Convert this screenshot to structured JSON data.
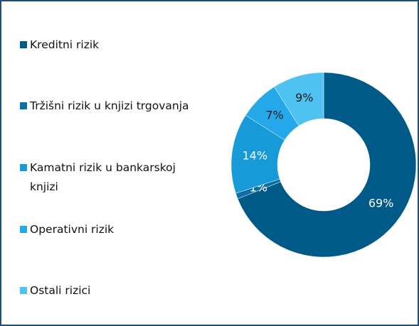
{
  "chart_data": {
    "type": "donut",
    "categories": [
      "Kreditni rizik",
      "Tržišni rizik u knjizi trgovanja",
      "Kamatni rizik u bankarskoj knjizi",
      "Operativni rizik",
      "Ostali rizici"
    ],
    "values": [
      69,
      1,
      14,
      7,
      9
    ],
    "value_labels": [
      "69%",
      "1%",
      "14%",
      "7%",
      "9%"
    ],
    "colors": [
      "#005a87",
      "#0b6fa6",
      "#169ad8",
      "#24a8ea",
      "#4fc2f2"
    ],
    "label_colors": [
      "#ffffff",
      "#ffffff",
      "#ffffff",
      "#1a1a1a",
      "#1a1a1a"
    ],
    "legend": "left"
  }
}
